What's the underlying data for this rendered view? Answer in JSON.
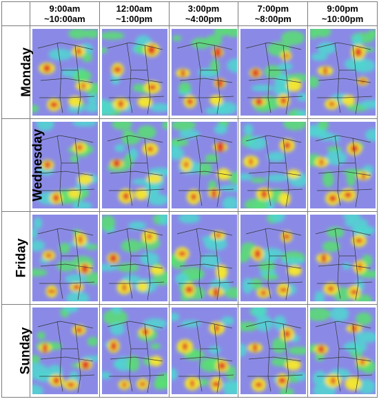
{
  "columns": [
    {
      "line1": "9:00am",
      "line2": "~10:00am"
    },
    {
      "line1": "12:00am",
      "line2": "~1:00pm"
    },
    {
      "line1": "3:00pm",
      "line2": "~4:00pm"
    },
    {
      "line1": "7:00pm",
      "line2": "~8:00pm"
    },
    {
      "line1": "9:00pm",
      "line2": "~10:00pm"
    }
  ],
  "rows": [
    {
      "label": "Monday"
    },
    {
      "label": "Wednesday"
    },
    {
      "label": "Friday"
    },
    {
      "label": "Sunday"
    }
  ],
  "colors": {
    "background": "#8a8ae6",
    "low": "#4fd6d0",
    "mid": "#58e070",
    "high": "#f2e432",
    "peak": "#e0362a",
    "roads": "#333333"
  }
}
